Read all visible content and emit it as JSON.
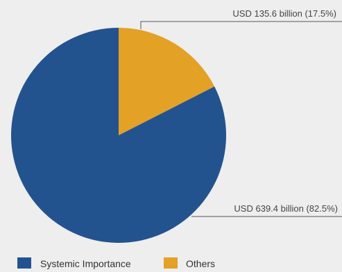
{
  "chart_data": {
    "type": "pie",
    "slices": [
      {
        "label": "Others",
        "value": 17.5,
        "color": "#e3a126",
        "annotation": "USD 135.6 billion (17.5%)"
      },
      {
        "label": "Systemic Importance",
        "value": 82.5,
        "color": "#23538f",
        "annotation": "USD 639.4 billion (82.5%)"
      }
    ],
    "legend": {
      "placement": "bottom-left",
      "entries": [
        {
          "label": "Systemic Importance",
          "color": "#23538f"
        },
        {
          "label": "Others",
          "color": "#e3a126"
        }
      ]
    },
    "annotation_line_color": "#555555"
  }
}
